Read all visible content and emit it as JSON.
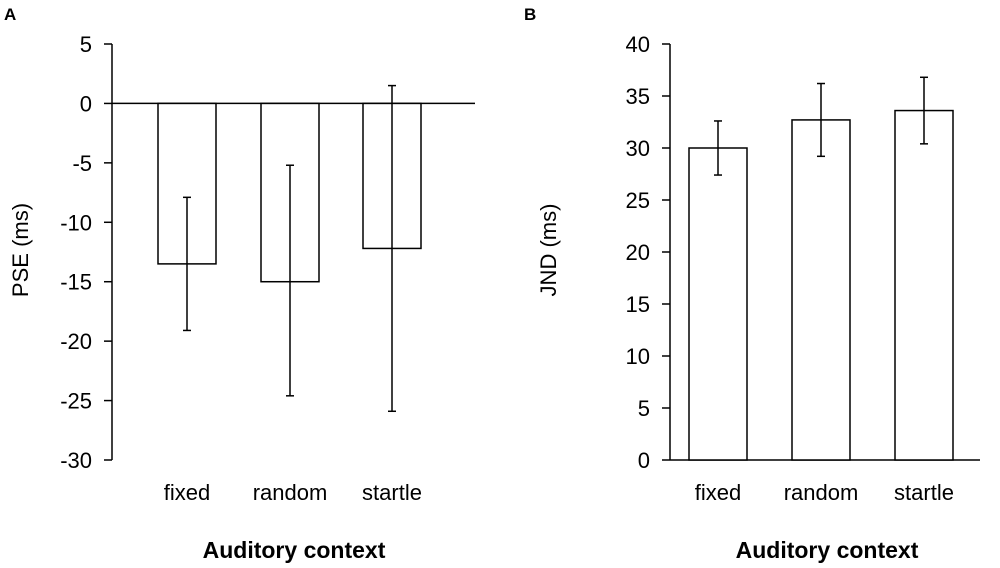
{
  "chart_data": [
    {
      "panel": "A",
      "type": "bar",
      "categories": [
        "fixed",
        "random",
        "startle"
      ],
      "values": [
        -13.5,
        -15.0,
        -12.2
      ],
      "error_low": [
        -19.1,
        -24.6,
        -25.9
      ],
      "error_high": [
        -7.9,
        -5.2,
        1.5
      ],
      "ylabel": "PSE (ms)",
      "xlabel": "Auditory context",
      "ylim": [
        -30,
        5
      ],
      "yticks": [
        "5",
        "0",
        "-5",
        "-10",
        "-15",
        "-20",
        "-25",
        "-30"
      ],
      "zero_line": true,
      "grid": false
    },
    {
      "panel": "B",
      "type": "bar",
      "categories": [
        "fixed",
        "random",
        "startle"
      ],
      "values": [
        30.0,
        32.7,
        33.6
      ],
      "error_low": [
        27.4,
        29.2,
        30.4
      ],
      "error_high": [
        32.6,
        36.2,
        36.8
      ],
      "ylabel": "JND (ms)",
      "xlabel": "Auditory context",
      "ylim": [
        0,
        40
      ],
      "yticks": [
        "40",
        "35",
        "30",
        "25",
        "20",
        "15",
        "10",
        "5",
        "0"
      ],
      "zero_line": false,
      "grid": false
    }
  ],
  "colors": {
    "bar_fill": "#ffffff",
    "stroke": "#000000"
  }
}
